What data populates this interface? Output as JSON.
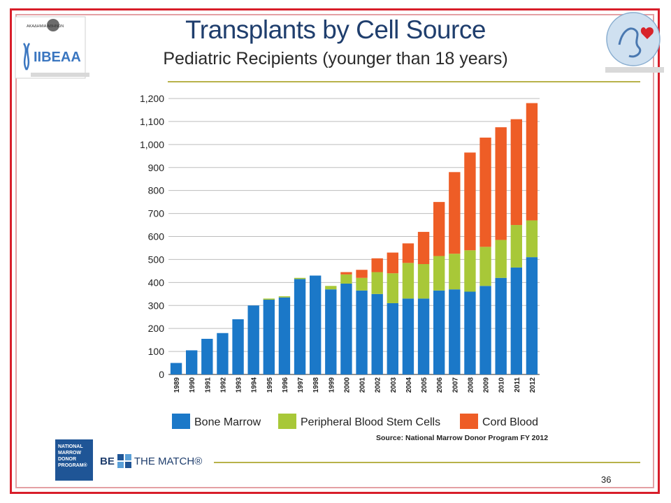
{
  "slide": {
    "title": "Transplants by Cell Source",
    "subtitle": "Pediatric Recipients (younger than 18 years)",
    "source": "Source: National Marrow Donor Program FY 2012",
    "page_number": "36",
    "logos": {
      "left_top_text": "ΑΚΑΔΗΜΙΑ ΑΘΗΝΩΝ",
      "left_main_text": "IIBEAA",
      "nmdp_lines": [
        "NATIONAL",
        "MARROW",
        "DONOR",
        "PROGRAM®"
      ],
      "be_the_match_be": "BE",
      "be_the_match_rest": "THE MATCH®"
    }
  },
  "colors": {
    "bone_marrow": "#1b78c8",
    "pbsc": "#a8c838",
    "cord_blood": "#ee5d26",
    "frame": "#d81e2a",
    "title": "#1f3e6d",
    "rule": "#b8b24a"
  },
  "chart_data": {
    "type": "bar",
    "stacked": true,
    "categories": [
      "1989",
      "1990",
      "1991",
      "1992",
      "1993",
      "1994",
      "1995",
      "1996",
      "1997",
      "1998",
      "1999",
      "2000",
      "2001",
      "2002",
      "2003",
      "2004",
      "2005",
      "2006",
      "2007",
      "2008",
      "2009",
      "2010",
      "2011",
      "2012"
    ],
    "series": [
      {
        "name": "Bone Marrow",
        "values": [
          50,
          105,
          155,
          180,
          240,
          300,
          325,
          335,
          415,
          430,
          370,
          395,
          365,
          350,
          310,
          330,
          330,
          365,
          370,
          360,
          385,
          420,
          465,
          510
        ]
      },
      {
        "name": "Peripheral Blood Stem Cells",
        "values": [
          0,
          0,
          0,
          0,
          0,
          0,
          5,
          5,
          5,
          0,
          15,
          40,
          55,
          95,
          130,
          155,
          150,
          150,
          155,
          180,
          170,
          165,
          185,
          160
        ]
      },
      {
        "name": "Cord Blood",
        "values": [
          0,
          0,
          0,
          0,
          0,
          0,
          0,
          0,
          0,
          0,
          0,
          10,
          35,
          60,
          90,
          85,
          140,
          235,
          355,
          425,
          475,
          490,
          460,
          510
        ]
      }
    ],
    "yticks": [
      "0",
      "100",
      "200",
      "300",
      "400",
      "500",
      "600",
      "700",
      "800",
      "900",
      "1,000",
      "1,100",
      "1,200"
    ],
    "ylim": [
      0,
      1200
    ],
    "grid": true,
    "legend": "bottom"
  }
}
